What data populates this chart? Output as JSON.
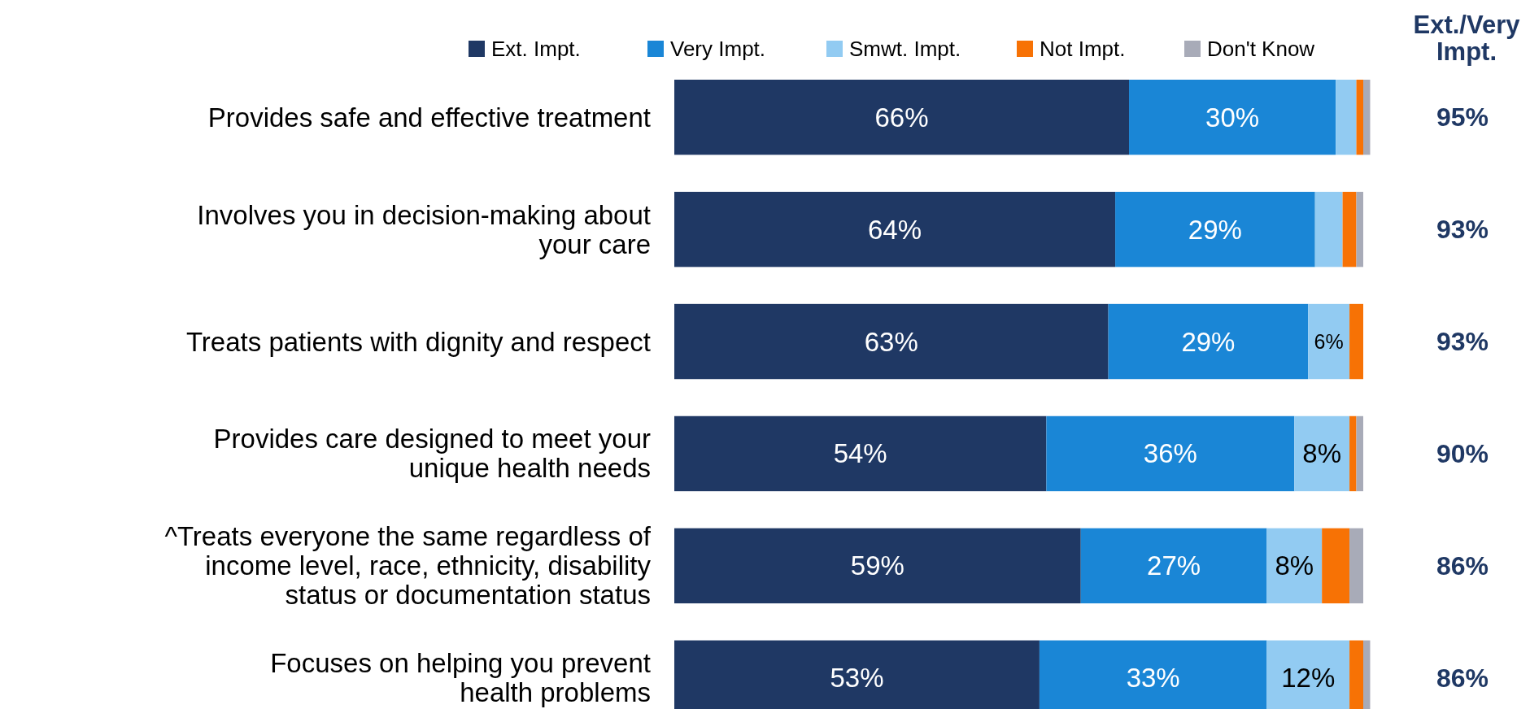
{
  "chart_data": {
    "type": "bar",
    "orientation": "horizontal",
    "stacked": true,
    "categories": [
      "Provides safe and effective treatment",
      "Involves you in decision-making about\nyour care",
      "Treats patients with dignity and respect",
      "Provides care designed to meet your\nunique health needs",
      "^Treats everyone the same regardless of\nincome level, race, ethnicity, disability\nstatus or documentation status",
      "Focuses on helping you prevent\nhealth problems"
    ],
    "legend": "top left",
    "series": [
      {
        "name": "Ext. Impt.",
        "color": "#1f3864",
        "values": [
          66,
          64,
          63,
          54,
          59,
          53
        ],
        "value_labels": [
          "66%",
          "64%",
          "63%",
          "54%",
          "59%",
          "53%"
        ]
      },
      {
        "name": "Very Impt.",
        "color": "#1a86d6",
        "values": [
          30,
          29,
          29,
          36,
          27,
          33
        ],
        "value_labels": [
          "30%",
          "29%",
          "29%",
          "36%",
          "27%",
          "33%"
        ]
      },
      {
        "name": "Smwt. Impt.",
        "color": "#92cbf2",
        "values": [
          3,
          4,
          6,
          8,
          8,
          12
        ],
        "value_labels": [
          null,
          null,
          "6%",
          "8%",
          "8%",
          "12%"
        ]
      },
      {
        "name": "Not Impt.",
        "color": "#f77205",
        "values": [
          1,
          2,
          2,
          1,
          4,
          2
        ]
      },
      {
        "name": "Don't Know",
        "color": "#a8abb8",
        "values": [
          1,
          1,
          0,
          1,
          2,
          1
        ]
      }
    ],
    "annotations": [
      "Ext./Very\nImpt.",
      "95%",
      "93%",
      "93%",
      "90%",
      "86%",
      "86%"
    ]
  }
}
